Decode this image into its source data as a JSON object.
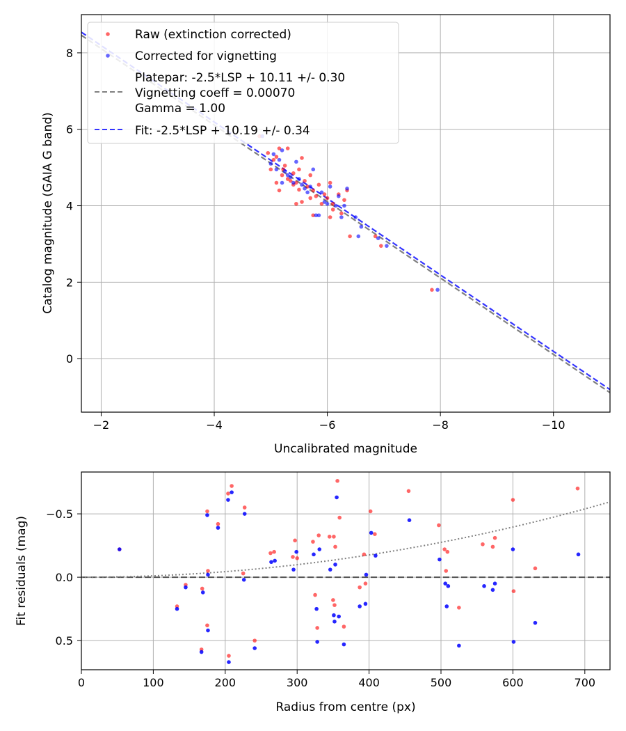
{
  "chart_data": [
    {
      "type": "scatter",
      "panel": "calibration",
      "xlabel": "Uncalibrated magnitude",
      "ylabel": "Catalog magnitude (GAIA G band)",
      "xlim": [
        -1.65,
        -11.0
      ],
      "ylim": [
        9.0,
        -1.4
      ],
      "x_ticks": [
        -2,
        -4,
        -6,
        -8,
        -10
      ],
      "x_tick_labels": [
        "−2",
        "−4",
        "−6",
        "−8",
        "−10"
      ],
      "y_ticks": [
        0,
        2,
        4,
        6,
        8
      ],
      "y_tick_labels": [
        "0",
        "2",
        "4",
        "6",
        "8"
      ],
      "grid": true,
      "legend": {
        "position": "top-left",
        "entries": [
          {
            "label": "Raw (extinction corrected)",
            "kind": "marker",
            "color": "#ff0000"
          },
          {
            "label": "Corrected for vignetting",
            "kind": "marker",
            "color": "#0000ff"
          },
          {
            "label_lines": [
              "Platepar: -2.5*LSP + 10.11 +/- 0.30",
              "Vignetting coeff = 0.00070",
              "Gamma = 1.00"
            ],
            "kind": "line",
            "color": "#808080"
          },
          {
            "label": "Fit: -2.5*LSP + 10.19 +/- 0.34",
            "kind": "line",
            "color": "#3333ff"
          }
        ]
      },
      "lines": [
        {
          "name": "Platepar",
          "slope": 1.0,
          "intercept": 10.11,
          "color": "#808080"
        },
        {
          "name": "Fit",
          "slope": 1.0,
          "intercept": 10.19,
          "color": "#3333ff"
        }
      ],
      "series": [
        {
          "name": "Raw (extinction corrected)",
          "color": "#ff0000",
          "points": [
            [
              -4.8,
              5.82
            ],
            [
              -4.95,
              5.38
            ],
            [
              -5.0,
              4.95
            ],
            [
              -5.05,
              5.2
            ],
            [
              -5.1,
              5.28
            ],
            [
              -5.1,
              4.6
            ],
            [
              -5.15,
              4.4
            ],
            [
              -5.15,
              5.5
            ],
            [
              -5.2,
              4.8
            ],
            [
              -5.22,
              4.95
            ],
            [
              -5.25,
              5.05
            ],
            [
              -5.3,
              4.7
            ],
            [
              -5.3,
              5.5
            ],
            [
              -5.35,
              4.65
            ],
            [
              -5.4,
              4.55
            ],
            [
              -5.4,
              4.85
            ],
            [
              -5.45,
              4.6
            ],
            [
              -5.45,
              4.05
            ],
            [
              -5.5,
              4.42
            ],
            [
              -5.5,
              4.95
            ],
            [
              -5.55,
              4.1
            ],
            [
              -5.55,
              5.25
            ],
            [
              -5.6,
              4.65
            ],
            [
              -5.65,
              4.5
            ],
            [
              -5.7,
              4.2
            ],
            [
              -5.7,
              4.8
            ],
            [
              -5.75,
              4.4
            ],
            [
              -5.75,
              3.75
            ],
            [
              -5.8,
              4.25
            ],
            [
              -5.85,
              4.55
            ],
            [
              -5.9,
              4.05
            ],
            [
              -5.95,
              4.3
            ],
            [
              -6.0,
              4.2
            ],
            [
              -6.05,
              4.6
            ],
            [
              -6.1,
              4.05
            ],
            [
              -6.1,
              3.9
            ],
            [
              -6.2,
              4.3
            ],
            [
              -6.3,
              4.15
            ],
            [
              -6.35,
              4.4
            ],
            [
              -6.05,
              3.7
            ],
            [
              -6.25,
              3.8
            ],
            [
              -6.4,
              3.2
            ],
            [
              -6.85,
              3.2
            ],
            [
              -6.95,
              2.95
            ],
            [
              -7.85,
              1.8
            ]
          ]
        },
        {
          "name": "Corrected for vignetting",
          "color": "#0000ff",
          "points": [
            [
              -4.85,
              5.82
            ],
            [
              -5.0,
              5.1
            ],
            [
              -5.05,
              5.35
            ],
            [
              -5.1,
              4.95
            ],
            [
              -5.15,
              5.2
            ],
            [
              -5.2,
              4.6
            ],
            [
              -5.2,
              5.45
            ],
            [
              -5.25,
              4.9
            ],
            [
              -5.3,
              4.8
            ],
            [
              -5.35,
              4.75
            ],
            [
              -5.4,
              4.6
            ],
            [
              -5.45,
              5.15
            ],
            [
              -5.5,
              4.7
            ],
            [
              -5.55,
              4.55
            ],
            [
              -5.6,
              4.45
            ],
            [
              -5.65,
              4.35
            ],
            [
              -5.7,
              4.5
            ],
            [
              -5.75,
              4.95
            ],
            [
              -5.8,
              3.75
            ],
            [
              -5.85,
              3.75
            ],
            [
              -5.9,
              4.35
            ],
            [
              -5.95,
              4.1
            ],
            [
              -6.0,
              4.05
            ],
            [
              -6.05,
              4.5
            ],
            [
              -6.15,
              4.0
            ],
            [
              -6.2,
              4.25
            ],
            [
              -6.3,
              4.0
            ],
            [
              -6.35,
              4.45
            ],
            [
              -6.5,
              3.7
            ],
            [
              -6.6,
              3.45
            ],
            [
              -6.9,
              3.15
            ],
            [
              -7.05,
              2.95
            ],
            [
              -6.25,
              3.7
            ],
            [
              -6.55,
              3.2
            ],
            [
              -7.95,
              1.8
            ]
          ]
        }
      ]
    },
    {
      "type": "scatter",
      "panel": "residuals",
      "xlabel": "Radius from centre (px)",
      "ylabel": "Fit residuals (mag)",
      "xlim": [
        0,
        735
      ],
      "ylim": [
        -0.83,
        0.73
      ],
      "x_ticks": [
        0,
        100,
        200,
        300,
        400,
        500,
        600,
        700
      ],
      "x_tick_labels": [
        "0",
        "100",
        "200",
        "300",
        "400",
        "500",
        "600",
        "700"
      ],
      "y_ticks": [
        0.5,
        0.0,
        -0.5
      ],
      "y_tick_labels": [
        "0.5",
        "0.0",
        "−0.5"
      ],
      "grid": true,
      "reference_lines": [
        {
          "name": "zero",
          "y": 0.0,
          "color": "#555555",
          "style": "dashed"
        },
        {
          "name": "vignetting-model",
          "curve": "quadratic",
          "coeff": -1.1e-06,
          "color": "#808080",
          "style": "dotted"
        }
      ],
      "series": [
        {
          "name": "Raw",
          "color": "#ff0000",
          "points": [
            [
              53,
              -0.22
            ],
            [
              133,
              0.23
            ],
            [
              145,
              0.06
            ],
            [
              167,
              0.57
            ],
            [
              168,
              0.09
            ],
            [
              175,
              -0.52
            ],
            [
              175,
              0.38
            ],
            [
              176,
              -0.05
            ],
            [
              190,
              -0.42
            ],
            [
              205,
              0.62
            ],
            [
              204,
              -0.66
            ],
            [
              209,
              -0.72
            ],
            [
              227,
              -0.55
            ],
            [
              225,
              -0.03
            ],
            [
              241,
              0.5
            ],
            [
              263,
              -0.19
            ],
            [
              268,
              -0.2
            ],
            [
              294,
              -0.16
            ],
            [
              297,
              -0.29
            ],
            [
              300,
              -0.15
            ],
            [
              322,
              -0.28
            ],
            [
              325,
              0.14
            ],
            [
              328,
              0.4
            ],
            [
              330,
              -0.33
            ],
            [
              345,
              -0.32
            ],
            [
              350,
              0.18
            ],
            [
              351,
              -0.32
            ],
            [
              352,
              0.22
            ],
            [
              353,
              -0.24
            ],
            [
              356,
              -0.76
            ],
            [
              359,
              -0.47
            ],
            [
              365,
              0.39
            ],
            [
              387,
              0.08
            ],
            [
              393,
              -0.18
            ],
            [
              395,
              0.05
            ],
            [
              402,
              -0.52
            ],
            [
              408,
              -0.34
            ],
            [
              455,
              -0.68
            ],
            [
              497,
              -0.41
            ],
            [
              505,
              -0.22
            ],
            [
              507,
              -0.05
            ],
            [
              509,
              -0.2
            ],
            [
              525,
              0.24
            ],
            [
              558,
              -0.26
            ],
            [
              572,
              -0.24
            ],
            [
              575,
              -0.31
            ],
            [
              601,
              0.11
            ],
            [
              600,
              -0.61
            ],
            [
              631,
              -0.07
            ],
            [
              690,
              -0.7
            ]
          ]
        },
        {
          "name": "Corrected",
          "color": "#0000ff",
          "points": [
            [
              53,
              -0.22
            ],
            [
              133,
              0.25
            ],
            [
              145,
              0.08
            ],
            [
              167,
              0.59
            ],
            [
              169,
              0.12
            ],
            [
              175,
              -0.49
            ],
            [
              176,
              0.42
            ],
            [
              176,
              -0.02
            ],
            [
              190,
              -0.39
            ],
            [
              205,
              0.67
            ],
            [
              204,
              -0.61
            ],
            [
              209,
              -0.67
            ],
            [
              227,
              -0.5
            ],
            [
              226,
              0.02
            ],
            [
              241,
              0.56
            ],
            [
              264,
              -0.12
            ],
            [
              269,
              -0.13
            ],
            [
              295,
              -0.06
            ],
            [
              299,
              -0.2
            ],
            [
              323,
              -0.18
            ],
            [
              327,
              0.25
            ],
            [
              328,
              0.51
            ],
            [
              331,
              -0.22
            ],
            [
              346,
              -0.06
            ],
            [
              351,
              0.3
            ],
            [
              352,
              0.35
            ],
            [
              353,
              -0.1
            ],
            [
              355,
              -0.63
            ],
            [
              358,
              0.31
            ],
            [
              365,
              0.53
            ],
            [
              387,
              0.23
            ],
            [
              395,
              0.21
            ],
            [
              396,
              -0.02
            ],
            [
              403,
              -0.35
            ],
            [
              409,
              -0.17
            ],
            [
              456,
              -0.45
            ],
            [
              498,
              -0.14
            ],
            [
              506,
              0.05
            ],
            [
              508,
              0.23
            ],
            [
              510,
              0.07
            ],
            [
              525,
              0.54
            ],
            [
              560,
              0.07
            ],
            [
              572,
              0.1
            ],
            [
              575,
              0.05
            ],
            [
              601,
              0.51
            ],
            [
              600,
              -0.22
            ],
            [
              631,
              0.36
            ],
            [
              691,
              -0.18
            ]
          ]
        }
      ]
    }
  ]
}
